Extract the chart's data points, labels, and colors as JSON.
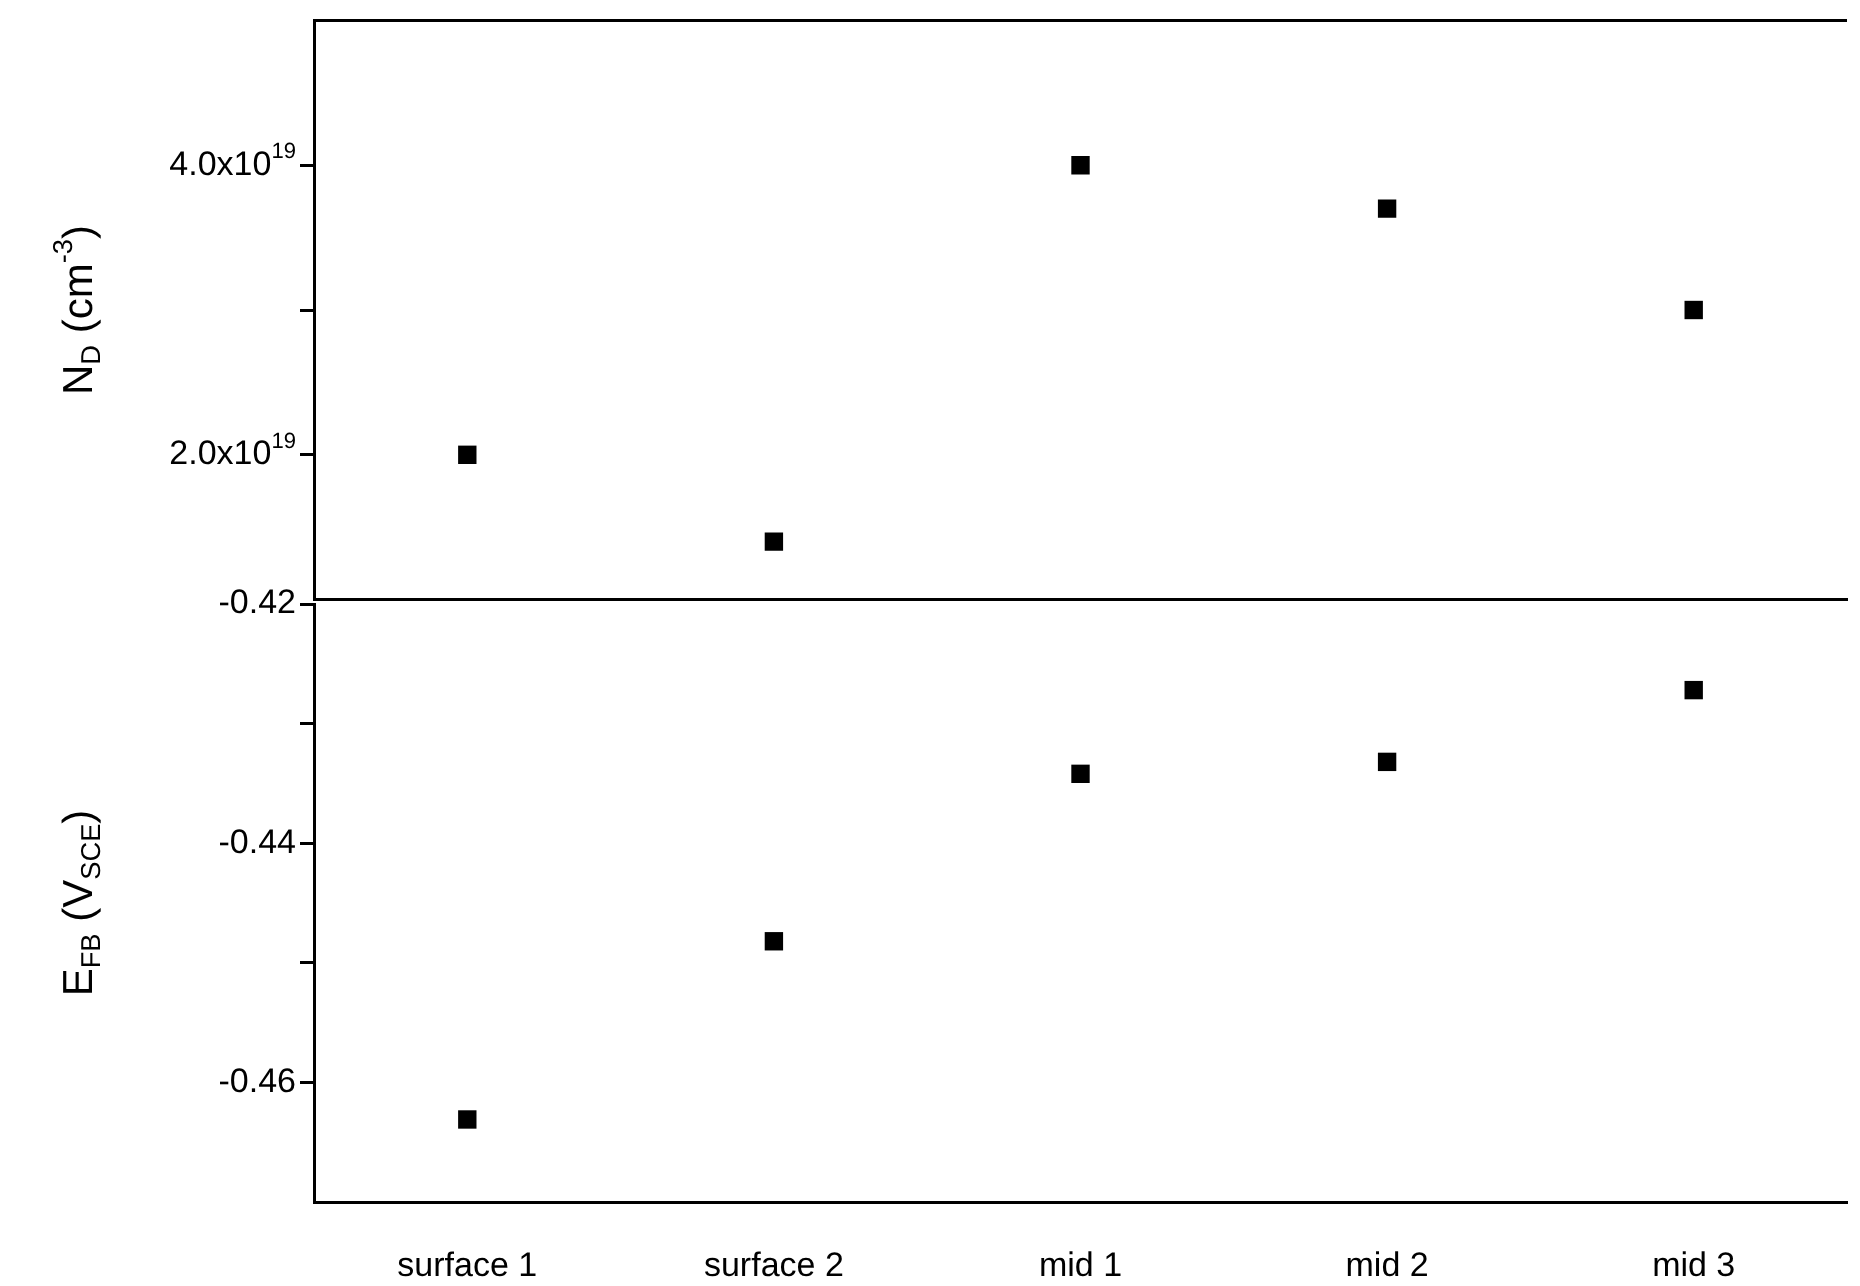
{
  "chart_data": [
    {
      "type": "scatter",
      "categories": [
        null,
        null,
        null,
        null,
        null
      ],
      "values": [
        2e+19,
        1.4e+19,
        4e+19,
        3.7e+19,
        3e+19
      ],
      "color": "#000000",
      "marker": "square",
      "ylabel": "N$_{D}$ (cm$^{-3}$)",
      "ylim": [
        1e+19,
        5e+19
      ],
      "yticks": [
        {
          "value": 2e+19,
          "label": "2.0x10$^{19}$"
        },
        {
          "value": 3e+19,
          "label": null
        },
        {
          "value": 4e+19,
          "label": "4.0x10$^{19}$"
        }
      ],
      "tick_labels": "y",
      "grid": false
    },
    {
      "type": "scatter",
      "categories": [
        "surface 1",
        "surface 2",
        "mid 1",
        "mid 2",
        "mid 3"
      ],
      "values": [
        -0.4631,
        -0.4482,
        -0.4342,
        -0.4332,
        -0.4272
      ],
      "color": "#000000",
      "marker": "square",
      "ylabel": "E$_{FB}$ (V$_{SCE}$)",
      "ylim": [
        -0.47,
        -0.42
      ],
      "yticks": [
        -0.42,
        {
          "value": -0.43,
          "label": null
        },
        -0.44,
        {
          "value": -0.45,
          "label": null
        },
        -0.46
      ],
      "grid": false
    }
  ]
}
